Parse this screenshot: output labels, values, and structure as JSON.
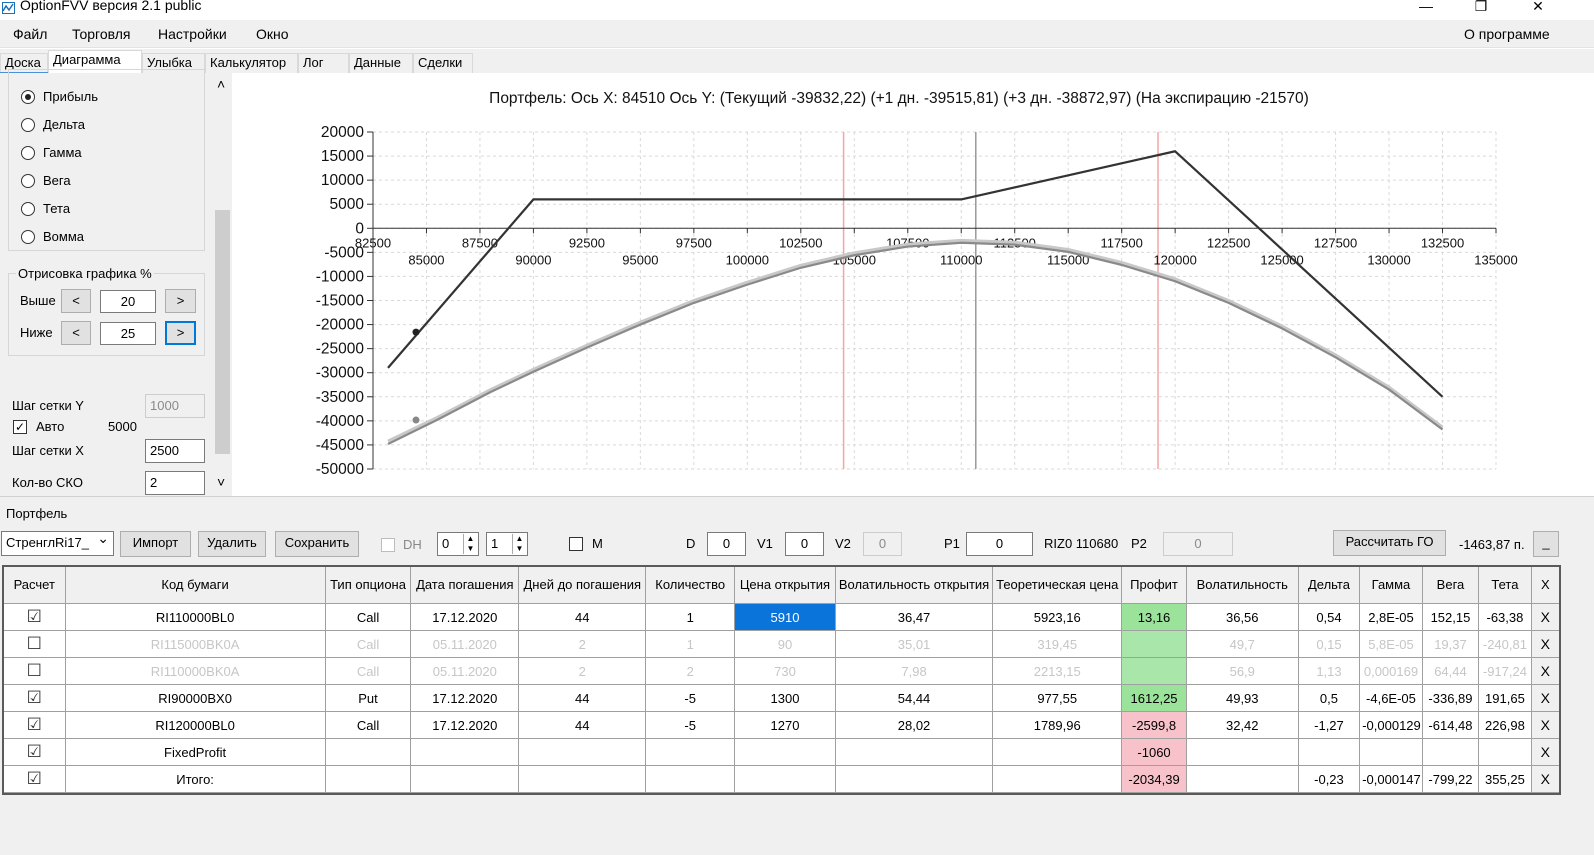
{
  "window": {
    "title": "OptionFVV версия 2.1 public",
    "controls": {
      "minimize": "—",
      "maximize": "❐",
      "close": "✕"
    }
  },
  "menu": {
    "items": [
      "Файл",
      "Торговля",
      "Настройки",
      "Окно"
    ],
    "about": "О программе"
  },
  "tabs": [
    "Доска",
    "Диаграмма",
    "Улыбка",
    "Калькулятор",
    "Лог",
    "Данные",
    "Сделки"
  ],
  "left_panel": {
    "radio_options": [
      {
        "label": "Прибыль",
        "selected": true
      },
      {
        "label": "Дельта",
        "selected": false
      },
      {
        "label": "Гамма",
        "selected": false
      },
      {
        "label": "Вега",
        "selected": false
      },
      {
        "label": "Тета",
        "selected": false
      },
      {
        "label": "Вомма",
        "selected": false
      }
    ],
    "render_group": {
      "title": "Отрисовка графика %",
      "above_label": "Выше",
      "above_value": "20",
      "below_label": "Ниже",
      "below_value": "25",
      "dec": "<",
      "inc": ">"
    },
    "grid_y_label": "Шаг сетки Y",
    "grid_y_value": "1000",
    "auto_label": "Авто",
    "auto_checked": "✓",
    "auto_value": "5000",
    "grid_x_label": "Шаг сетки X",
    "grid_x_value": "2500",
    "sko_label": "Кол-во СКО",
    "sko_value": "2",
    "scroll_up": "˄",
    "scroll_down": "˅"
  },
  "chart_data": {
    "type": "line",
    "title": "Портфель: Ось X: 84510 Ось Y:  (Текущий -39832,22)  (+1 дн. -39515,81)  (+3 дн. -38872,97)  (На экспирацию -21570)",
    "ylim": [
      -50000,
      20000
    ],
    "xlim": [
      82500,
      135000
    ],
    "y_ticks": [
      "20000",
      "15000",
      "10000",
      "5000",
      "0",
      "-5000",
      "-10000",
      "-15000",
      "-20000",
      "-25000",
      "-30000",
      "-35000",
      "-40000",
      "-45000",
      "-50000"
    ],
    "x_ticks_upper": [
      "82500",
      "87500",
      "92500",
      "97500",
      "102500",
      "107500",
      "112500",
      "117500",
      "122500",
      "127500",
      "132500"
    ],
    "x_ticks_lower": [
      "85000",
      "90000",
      "95000",
      "100000",
      "105000",
      "110000",
      "115000",
      "120000",
      "125000",
      "130000",
      "135000"
    ],
    "vlines": [
      {
        "x": 104500,
        "color": "#f4a6a6"
      },
      {
        "x": 110680,
        "color": "#9a9a9a"
      },
      {
        "x": 119200,
        "color": "#f4a6a6"
      }
    ],
    "series": [
      {
        "color": "#333333",
        "x": [
          83200,
          90000,
          110000,
          120000,
          132500
        ],
        "y": [
          -29000,
          6000,
          6000,
          16000,
          -35000
        ]
      },
      {
        "color": "#8a8a8a",
        "x": [
          83200,
          85500,
          88000,
          90000,
          92500,
          95000,
          97500,
          100000,
          102500,
          105000,
          107500,
          110000,
          112500,
          115000,
          117500,
          120000,
          122500,
          125000,
          127500,
          130000,
          132500
        ],
        "y": [
          -44800,
          -39800,
          -34000,
          -29800,
          -24800,
          -20000,
          -15500,
          -11700,
          -8200,
          -5600,
          -3800,
          -3000,
          -3400,
          -4900,
          -7600,
          -11000,
          -15500,
          -20800,
          -26800,
          -33500,
          -41800
        ]
      },
      {
        "color": "#c8c8c8",
        "x": [
          83200,
          85500,
          88000,
          90000,
          92500,
          95000,
          97500,
          100000,
          102500,
          105000,
          107500,
          110000,
          112500,
          115000,
          117500,
          120000,
          122500,
          125000,
          127500,
          130000,
          132500
        ],
        "y": [
          -44200,
          -39300,
          -33500,
          -29300,
          -24300,
          -19500,
          -15000,
          -11200,
          -7700,
          -5100,
          -3300,
          -2500,
          -2900,
          -4400,
          -7100,
          -10500,
          -15000,
          -20300,
          -26300,
          -33000,
          -41300
        ]
      }
    ],
    "points": [
      {
        "x": 84510,
        "y": -21570,
        "color": "#222222"
      },
      {
        "x": 84510,
        "y": -39832,
        "color": "#888888"
      }
    ]
  },
  "portfolio": {
    "section_title": "Портфель",
    "selector_value": "СтренглRi17_",
    "selector_arrow": "⌄",
    "import_label": "Импорт",
    "delete_label": "Удалить",
    "save_label": "Сохранить",
    "dh_label": "DH",
    "spin1_value": "0",
    "spin2_value": "1",
    "m_label": "M",
    "d_label": "D",
    "d_value": "0",
    "v1_label": "V1",
    "v1_value": "0",
    "v2_label": "V2",
    "v2_value": "0",
    "p1_label": "P1",
    "p1_value": "0",
    "riz_label": "RIZ0 110680",
    "p2_label": "P2",
    "p2_value": "0",
    "calc_go_label": "Рассчитать ГО",
    "go_value": "-1463,87 п.",
    "min_label": "_"
  },
  "table": {
    "headers": [
      "Расчет",
      "Код бумаги",
      "Тип опциона",
      "Дата погашения",
      "Дней до погашения",
      "Количество",
      "Цена открытия",
      "Волатильность открытия",
      "Теоретическая цена",
      "Профит",
      "Волатильность",
      "Дельта",
      "Гамма",
      "Вега",
      "Тета",
      "X"
    ],
    "rows": [
      {
        "check": "☑",
        "cells": [
          "RI110000BL0",
          "Call",
          "17.12.2020",
          "44",
          "1",
          "5910",
          "36,47",
          "5923,16",
          "13,16",
          "36,56",
          "0,54",
          "2,8E-05",
          "152,15",
          "-63,38"
        ],
        "x": "X"
      },
      {
        "check": "☐",
        "cells": [
          "RI115000BK0A",
          "Call",
          "05.11.2020",
          "2",
          "1",
          "90",
          "35,01",
          "319,45",
          "",
          "49,7",
          "0,15",
          "5,8E-05",
          "19,37",
          "-240,81"
        ],
        "x": "X"
      },
      {
        "check": "☐",
        "cells": [
          "RI110000BK0A",
          "Call",
          "05.11.2020",
          "2",
          "2",
          "730",
          "7,98",
          "2213,15",
          "",
          "56,9",
          "1,13",
          "0,000169",
          "64,44",
          "-917,24"
        ],
        "x": "X"
      },
      {
        "check": "☑",
        "cells": [
          "RI90000BX0",
          "Put",
          "17.12.2020",
          "44",
          "-5",
          "1300",
          "54,44",
          "977,55",
          "1612,25",
          "49,93",
          "0,5",
          "-4,6E-05",
          "-336,89",
          "191,65"
        ],
        "x": "X"
      },
      {
        "check": "☑",
        "cells": [
          "RI120000BL0",
          "Call",
          "17.12.2020",
          "44",
          "-5",
          "1270",
          "28,02",
          "1789,96",
          "-2599,8",
          "32,42",
          "-1,27",
          "-0,000129",
          "-614,48",
          "226,98"
        ],
        "x": "X"
      },
      {
        "check": "☑",
        "cells": [
          "FixedProfit",
          "",
          "",
          "",
          "",
          "",
          "",
          "",
          "-1060",
          "",
          "",
          "",
          "",
          ""
        ],
        "x": "X"
      },
      {
        "check": "☑",
        "cells": [
          "Итого:",
          "",
          "",
          "",
          "",
          "",
          "",
          "",
          "-2034,39",
          "",
          "-0,23",
          "-0,000147",
          "-799,22",
          "355,25"
        ],
        "x": "X"
      }
    ]
  }
}
